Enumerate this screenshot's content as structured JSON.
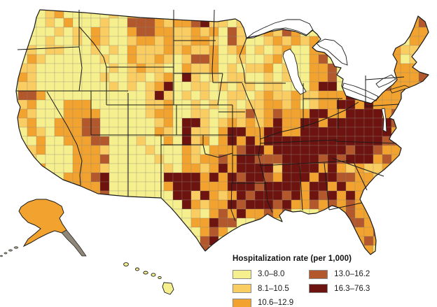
{
  "legend": {
    "title": "Hospitalization rate (per 1,000)",
    "classes": [
      {
        "label": "3.0–8.0",
        "color": "#F6EF8E"
      },
      {
        "label": "8.1–10.5",
        "color": "#FACD62"
      },
      {
        "label": "10.6–12.9",
        "color": "#F2A22E"
      },
      {
        "label": "13.0–16.2",
        "color": "#B2582C"
      },
      {
        "label": "16.3–76.3",
        "color": "#6E1410"
      }
    ]
  },
  "map": {
    "grid": {
      "cols": 48,
      "rows": 28,
      "cell_size": 13,
      "cells": [
        "0000 00100 00100 121220 1121 1010 00000000000000000000",
        "0000 01200 00010 212121 1212 0210 0000000000000000 0220",
        "0000 01020 00100 333212 2341 1010 0000000000000000 0230",
        "0000 00101 02100 233221 1212 0310 1213 20 0000000000 0220",
        "0000 01001 02100 122121 1221 0310 0121 21 2 000000000 0220",
        "0 00101 100 01010 211121 2112 0120 1012 00220 000 22421 120",
        "0 00210 000 00100 211210 1332 0010 0120 00230 000 22420 120",
        "0 01100 000 00010 121100 2112 0101 1201 00223 000 32222 220",
        "0 02100 000 00100 110120 4101 0110 0101 00223 000 22122 230",
        "0 01100 000 00010 101240 0110 1011 0110 00244 002 22322 200",
        "0 03320 000 00000 001410 1010 0110 1211 21122 244 22222 000",
        "0 01200 022 20000 001120 0101 0101 1221 20122 442 42222 000",
        "0 02100 022 22000 001220 0110 0113 1232 22442 244 44232 000",
        "0 01200 222 33000 000120 4410 1212 1242 24424 444 44432 000",
        "0 00210 222 33000 000210 4110 2442 2442 24444 444 44423 000",
        "0 00020 022 23300 010020 4120 2424 2444 44444 444 44332 000",
        "0 00120 002 22100 001000 2102 2234 4244 44444 434 43221 000",
        "0 00100 002 22300 000100 2122 3244 3334 44434 344 42322 000",
        "0 00120 002 22100 000010 2212 4244 4414 44424 212 11220 000",
        "0 00022 022 23400 000044 4424 2434 4324 44244 332 21100 000",
        "0 00000 002 22400 000024 4422 2444 3444 42442 422 21000 000",
        "0 00000 002 22300 000004 4142 1243 4443 42434 242 20000 000",
        "0 00000 000 00000 000000 4212 2434 4434 22323 232 20000 000",
        "0 00000 000 00000 000000 0102 3242 2323 00023 232 20000 000",
        "0 00000 000 00000 000000 0224 3300 2300 00000 033 22000 000",
        "0 00000 000 00000 000000 0023 2000 0000 00000 022 23000 000",
        "0 00000 000 00000 000000 0034 0000 0000 00000 002 32000 000",
        "0 00000 000 00000 000000 0030 0000 0000 00000 000 20000 000"
      ]
    },
    "alaska_class_index": 2,
    "hawaii_class_index": 0,
    "long_island_class_index": 2,
    "colors": {
      "state_border": "#1b1b1b",
      "county_border": "#8d8d7e",
      "water": "#ffffff",
      "alaska_panhandle": "#8f8878"
    }
  }
}
